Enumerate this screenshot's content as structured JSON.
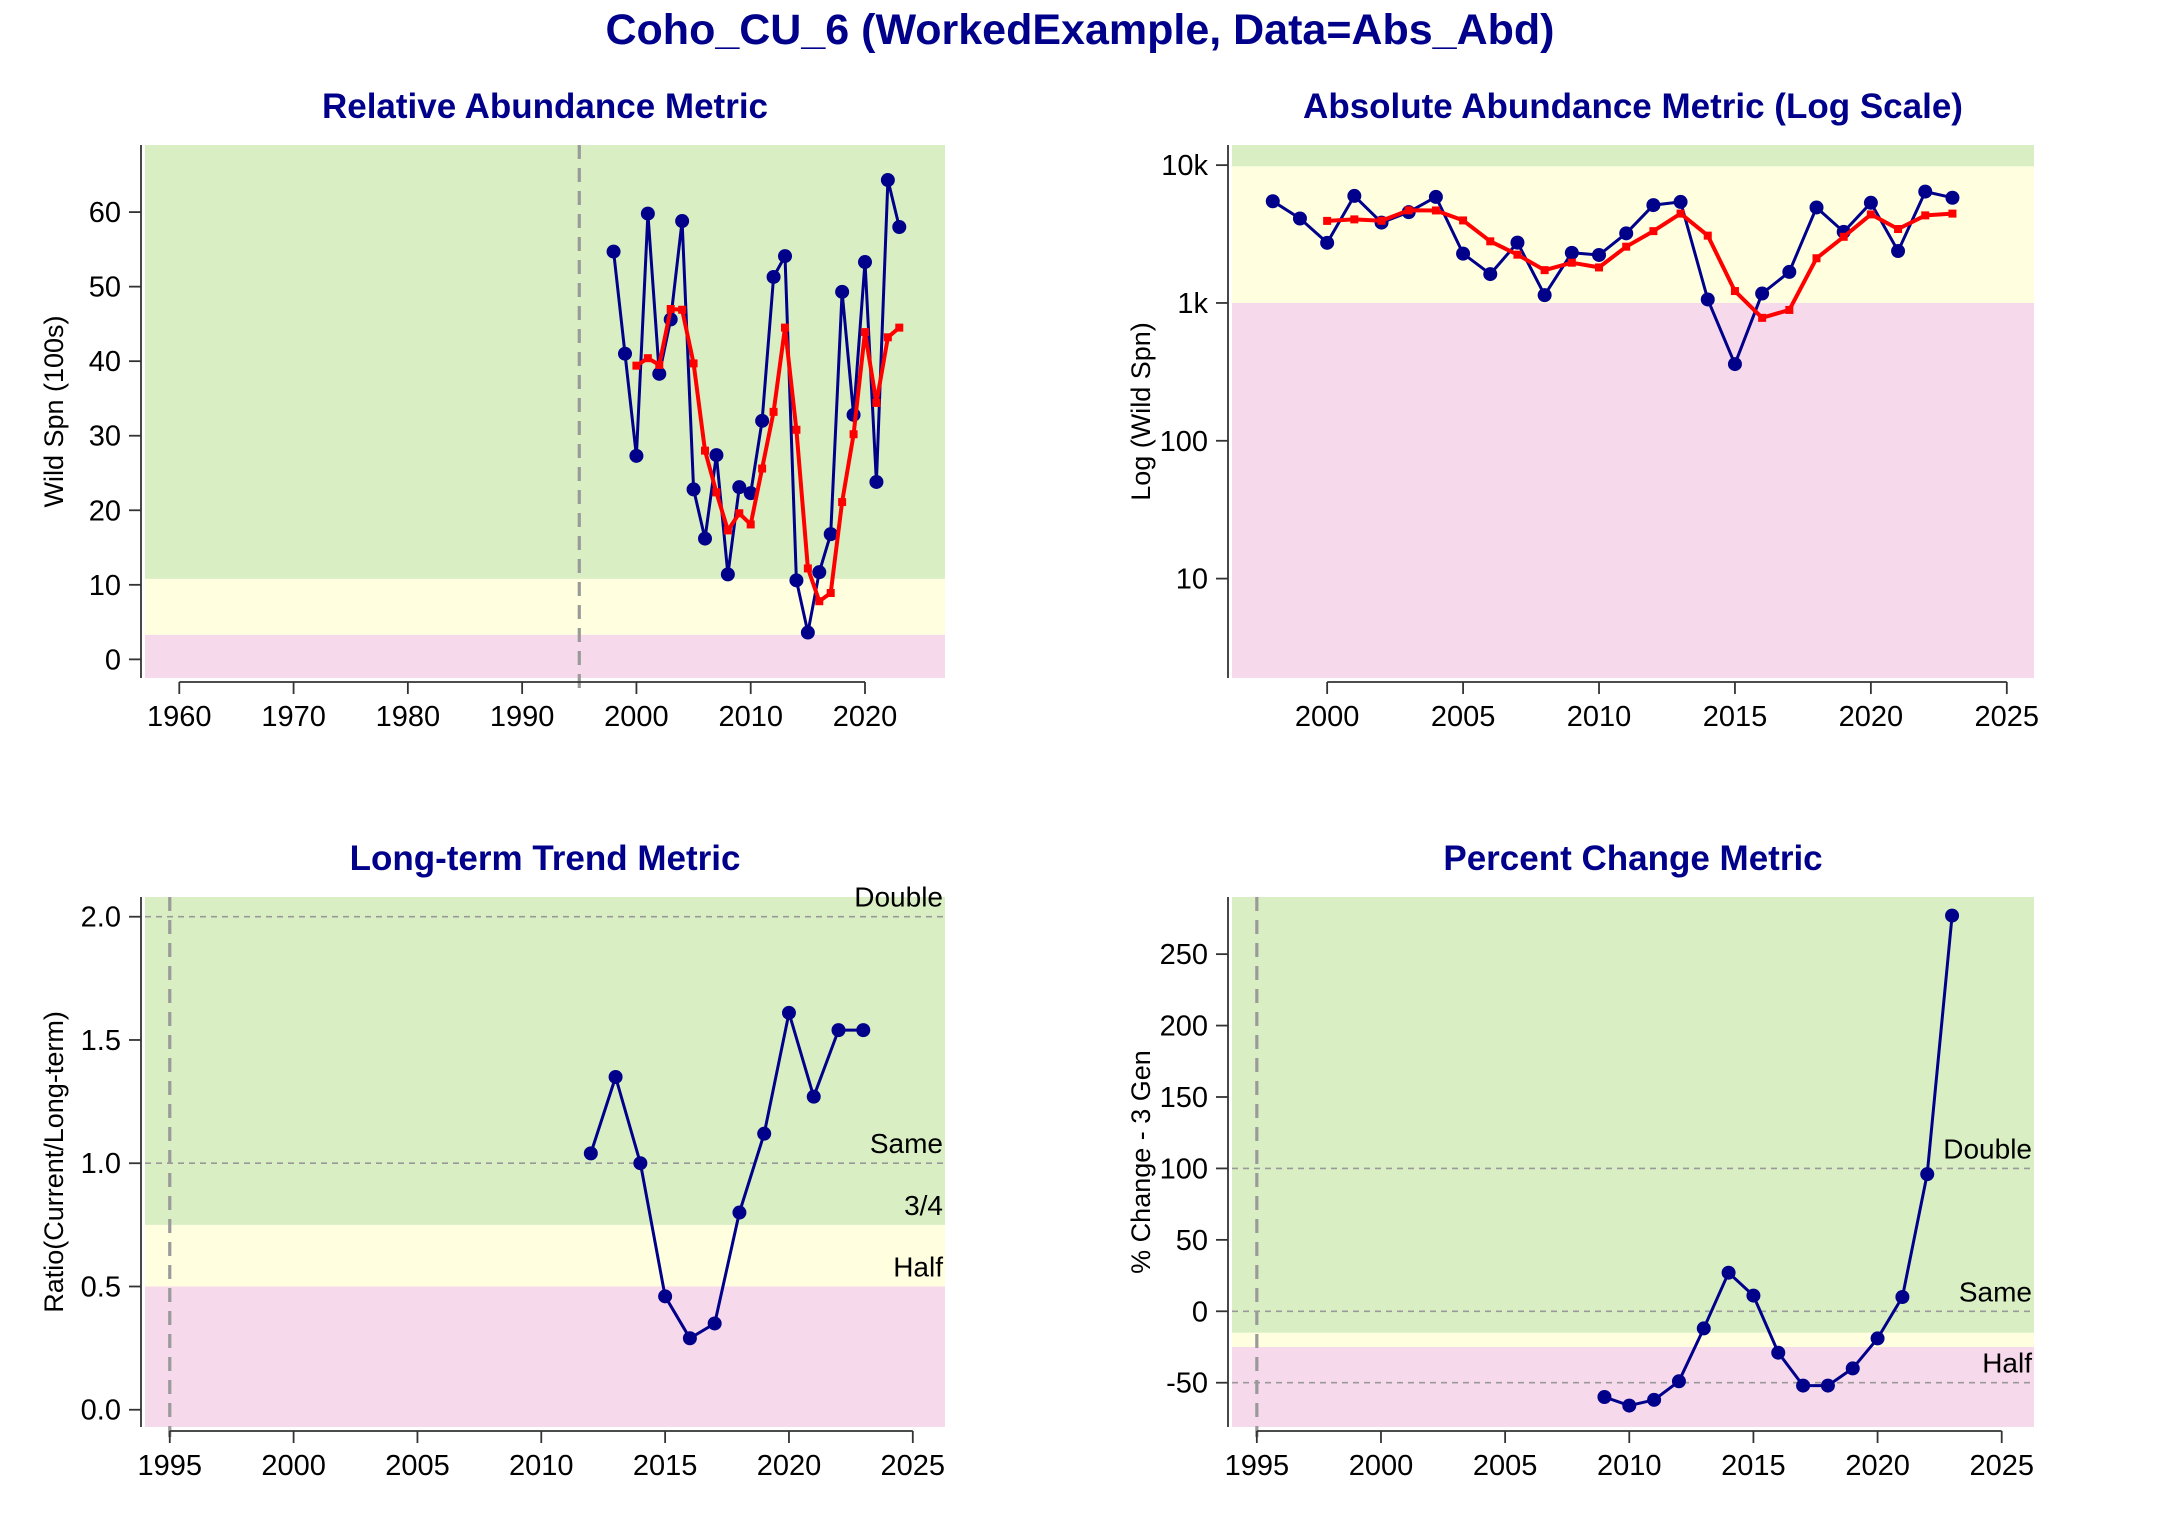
{
  "title": "Coho_CU_6 (WorkedExample, Data=Abs_Abd)",
  "colors": {
    "green": "#d9efc3",
    "yellow": "#ffffdf",
    "pink": "#f7d9ec",
    "series": "#00008b",
    "smooth": "#ff0000",
    "refline": "#999999"
  },
  "chart_data": [
    {
      "type": "line",
      "title": "Relative Abundance Metric",
      "ylabel": "Wild Spn (100s)",
      "xlim": [
        1957,
        2027
      ],
      "ylim": [
        -2.5,
        69
      ],
      "xticks": [
        1960,
        1970,
        1980,
        1990,
        2000,
        2010,
        2020
      ],
      "xtick_labels": [
        "1960",
        "1970",
        "1980",
        "1990",
        "2000",
        "2010",
        "2020"
      ],
      "yticks": [
        0,
        10,
        20,
        30,
        40,
        50,
        60
      ],
      "ytick_labels": [
        "0",
        "10",
        "20",
        "30",
        "40",
        "50",
        "60"
      ],
      "zones": [
        {
          "color": "pink",
          "from": -2.5,
          "to": 3.3
        },
        {
          "color": "yellow",
          "from": 3.3,
          "to": 10.8
        },
        {
          "color": "green",
          "from": 10.8,
          "to": 69
        }
      ],
      "vlines": [
        1995
      ],
      "hlines": [],
      "series": [
        {
          "role": "observed",
          "x": [
            1998,
            1999,
            2000,
            2001,
            2002,
            2003,
            2004,
            2005,
            2006,
            2007,
            2008,
            2009,
            2010,
            2011,
            2012,
            2013,
            2014,
            2015,
            2016,
            2017,
            2018,
            2019,
            2020,
            2021,
            2022,
            2023
          ],
          "y": [
            54.7,
            41,
            27.3,
            59.8,
            38.3,
            45.6,
            58.8,
            22.8,
            16.2,
            27.4,
            11.4,
            23.1,
            22.3,
            32,
            51.3,
            54.1,
            10.6,
            3.6,
            11.7,
            16.8,
            49.3,
            32.8,
            53.3,
            23.8,
            64.3,
            58
          ]
        },
        {
          "role": "smoothed",
          "x": [
            2000,
            2001,
            2002,
            2003,
            2004,
            2005,
            2006,
            2007,
            2008,
            2009,
            2010,
            2011,
            2012,
            2013,
            2014,
            2015,
            2016,
            2017,
            2018,
            2019,
            2020,
            2021,
            2022,
            2023
          ],
          "y": [
            39.4,
            40.4,
            39.5,
            47,
            46.9,
            39.7,
            28,
            22.4,
            17.3,
            19.6,
            18.1,
            25.6,
            33.2,
            44.5,
            30.8,
            12.2,
            7.8,
            8.9,
            21.1,
            30.2,
            43.9,
            34.4,
            43.2,
            44.5
          ]
        }
      ]
    },
    {
      "type": "line",
      "title": "Absolute Abundance Metric (Log Scale)",
      "ylabel": "Log (Wild Spn)",
      "xscale": "linear",
      "yscale": "log",
      "xlim": [
        1996.5,
        2026
      ],
      "ylim": [
        1.9,
        14000
      ],
      "xticks": [
        2000,
        2005,
        2010,
        2015,
        2020,
        2025
      ],
      "xtick_labels": [
        "2000",
        "2005",
        "2010",
        "2015",
        "2020",
        "2025"
      ],
      "yticks": [
        10,
        100,
        1000,
        10000
      ],
      "ytick_labels": [
        "10",
        "100",
        "1k",
        "10k"
      ],
      "zones": [
        {
          "color": "pink",
          "from": 1.9,
          "to": 1000
        },
        {
          "color": "yellow",
          "from": 1000,
          "to": 9800
        },
        {
          "color": "green",
          "from": 9800,
          "to": 14000
        }
      ],
      "vlines": [],
      "hlines": [],
      "series": [
        {
          "role": "observed",
          "x": [
            1998,
            1999,
            2000,
            2001,
            2002,
            2003,
            2004,
            2005,
            2006,
            2007,
            2008,
            2009,
            2010,
            2011,
            2012,
            2013,
            2014,
            2015,
            2016,
            2017,
            2018,
            2019,
            2020,
            2021,
            2022,
            2023
          ],
          "y": [
            5470,
            4100,
            2730,
            5980,
            3830,
            4560,
            5880,
            2280,
            1620,
            2740,
            1140,
            2310,
            2230,
            3200,
            5130,
            5410,
            1060,
            360,
            1170,
            1680,
            4930,
            3280,
            5330,
            2380,
            6430,
            5800
          ]
        },
        {
          "role": "smoothed",
          "x": [
            2000,
            2001,
            2002,
            2003,
            2004,
            2005,
            2006,
            2007,
            2008,
            2009,
            2010,
            2011,
            2012,
            2013,
            2014,
            2015,
            2016,
            2017,
            2018,
            2019,
            2020,
            2021,
            2022,
            2023
          ],
          "y": [
            3940,
            4040,
            3950,
            4700,
            4690,
            3970,
            2800,
            2240,
            1730,
            1960,
            1810,
            2560,
            3320,
            4450,
            3080,
            1220,
            780,
            890,
            2110,
            3020,
            4390,
            3440,
            4320,
            4450
          ]
        }
      ]
    },
    {
      "type": "line",
      "title": "Long-term Trend Metric",
      "ylabel": "Ratio(Current/Long-term)",
      "xlim": [
        1994,
        2026.3
      ],
      "ylim": [
        -0.07,
        2.08
      ],
      "xticks": [
        1995,
        2000,
        2005,
        2010,
        2015,
        2020,
        2025
      ],
      "xtick_labels": [
        "1995",
        "2000",
        "2005",
        "2010",
        "2015",
        "2020",
        "2025"
      ],
      "yticks": [
        0,
        0.5,
        1.0,
        1.5,
        2.0
      ],
      "ytick_labels": [
        "0.0",
        "0.5",
        "1.0",
        "1.5",
        "2.0"
      ],
      "zones": [
        {
          "color": "pink",
          "from": -0.07,
          "to": 0.5
        },
        {
          "color": "yellow",
          "from": 0.5,
          "to": 0.75
        },
        {
          "color": "green",
          "from": 0.75,
          "to": 2.08
        }
      ],
      "vlines": [
        1995
      ],
      "hlines": [
        {
          "y": 2.0,
          "label": "Double",
          "dashed": true
        },
        {
          "y": 1.0,
          "label": "Same",
          "dashed": true
        },
        {
          "y": 0.75,
          "label": "3/4",
          "dashed": false
        },
        {
          "y": 0.5,
          "label": "Half",
          "dashed": false
        }
      ],
      "series": [
        {
          "role": "observed",
          "x": [
            2012,
            2013,
            2014,
            2015,
            2016,
            2017,
            2018,
            2019,
            2020,
            2021,
            2022,
            2023
          ],
          "y": [
            1.04,
            1.35,
            1.0,
            0.46,
            0.29,
            0.35,
            0.8,
            1.12,
            1.61,
            1.27,
            1.54,
            1.54
          ]
        }
      ]
    },
    {
      "type": "line",
      "title": "Percent Change Metric",
      "ylabel": "% Change - 3 Gen",
      "xlim": [
        1994,
        2026.3
      ],
      "ylim": [
        -81,
        290
      ],
      "xticks": [
        1995,
        2000,
        2005,
        2010,
        2015,
        2020,
        2025
      ],
      "xtick_labels": [
        "1995",
        "2000",
        "2005",
        "2010",
        "2015",
        "2020",
        "2025"
      ],
      "yticks": [
        -50,
        0,
        50,
        100,
        150,
        200,
        250
      ],
      "ytick_labels": [
        "-50",
        "0",
        "50",
        "100",
        "150",
        "200",
        "250"
      ],
      "zones": [
        {
          "color": "pink",
          "from": -81,
          "to": -25
        },
        {
          "color": "yellow",
          "from": -25,
          "to": -15
        },
        {
          "color": "green",
          "from": -15,
          "to": 290
        }
      ],
      "vlines": [
        1995
      ],
      "hlines": [
        {
          "y": 100,
          "label": "Double",
          "dashed": true
        },
        {
          "y": 0,
          "label": "Same",
          "dashed": true
        },
        {
          "y": -50,
          "label": "Half",
          "dashed": true
        }
      ],
      "series": [
        {
          "role": "observed",
          "x": [
            2009,
            2010,
            2011,
            2012,
            2013,
            2014,
            2015,
            2016,
            2017,
            2018,
            2019,
            2020,
            2021,
            2022,
            2023
          ],
          "y": [
            -60,
            -66,
            -62,
            -49,
            -12,
            27,
            11,
            -29,
            -52,
            -52,
            -40,
            -19,
            10,
            96,
            277
          ]
        }
      ]
    }
  ]
}
